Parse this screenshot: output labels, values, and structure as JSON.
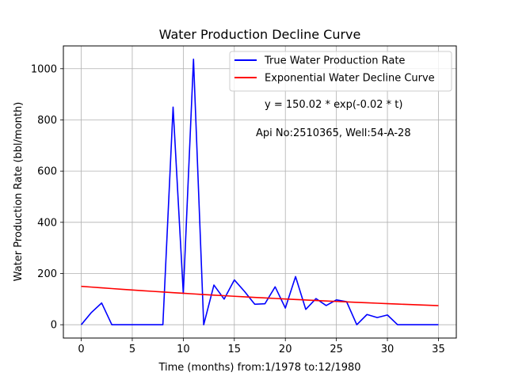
{
  "chart_data": {
    "type": "line",
    "title": "Water Production Decline Curve",
    "xlabel": "Time (months) from:1/1978 to:12/1980",
    "ylabel": "Water Production Rate (bbl/month)",
    "xlim": [
      -1.75,
      36.75
    ],
    "ylim": [
      -52,
      1089
    ],
    "xticks": [
      0,
      5,
      10,
      15,
      20,
      25,
      30,
      35
    ],
    "yticks": [
      0,
      200,
      400,
      600,
      800,
      1000
    ],
    "grid": true,
    "legend_position": "top-right",
    "series": [
      {
        "name": "True Water Production Rate",
        "color": "#0000ff",
        "x": [
          0,
          1,
          2,
          3,
          4,
          5,
          6,
          7,
          8,
          9,
          10,
          11,
          12,
          13,
          14,
          15,
          16,
          17,
          18,
          19,
          20,
          21,
          22,
          23,
          24,
          25,
          26,
          27,
          28,
          29,
          30,
          31,
          32,
          33,
          34,
          35
        ],
        "values": [
          0,
          48,
          85,
          0,
          0,
          0,
          0,
          0,
          0,
          850,
          122,
          1037,
          0,
          155,
          100,
          175,
          130,
          80,
          82,
          148,
          65,
          188,
          60,
          102,
          75,
          97,
          90,
          0,
          40,
          28,
          38,
          0,
          0,
          0,
          0,
          0
        ]
      },
      {
        "name": "Exponential Water Decline Curve",
        "color": "#ff0000",
        "x": [
          0,
          1,
          2,
          3,
          4,
          5,
          6,
          7,
          8,
          9,
          10,
          11,
          12,
          13,
          14,
          15,
          16,
          17,
          18,
          19,
          20,
          21,
          22,
          23,
          24,
          25,
          26,
          27,
          28,
          29,
          30,
          31,
          32,
          33,
          34,
          35
        ],
        "values": [
          150.02,
          147.05,
          144.14,
          141.29,
          138.49,
          135.75,
          133.06,
          130.43,
          127.85,
          125.32,
          122.83,
          120.4,
          118.02,
          115.68,
          113.39,
          111.15,
          108.95,
          106.79,
          104.68,
          102.6,
          100.57,
          98.58,
          96.63,
          94.72,
          92.84,
          91.01,
          89.2,
          87.44,
          85.71,
          84.01,
          82.35,
          80.72,
          79.12,
          77.55,
          76.01,
          74.51
        ]
      }
    ],
    "annotations": [
      "y = 150.02 * exp(-0.02 * t)",
      "Api No:2510365, Well:54-A-28"
    ]
  }
}
